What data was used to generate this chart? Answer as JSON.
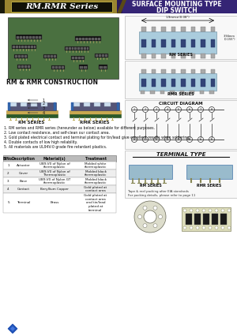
{
  "title_left": "RM.RMR Series",
  "title_right_line1": "SURFACE MOUNTING TYPE",
  "title_right_line2": "DIP SWITCH",
  "section1_title": "RM & RMR CONSTRUCTION",
  "rm_label": "RM SERIES",
  "rmr_label": "RMR SERIES",
  "features": [
    "1. RM series and RMR series (hereunder as below) available for different purposes.",
    "2. Low contact resistance, and self-clean our contact area.",
    "3. Gold plated electrical contact and terminal plating for tin/lead give excellent results when soldering.",
    "4. Double contacts of low high reliability.",
    "5. All materials are UL94V-0 grade fire retardant plastics."
  ],
  "table_header": [
    "BINo.",
    "Description",
    "Material(s)",
    "Treatment"
  ],
  "table_rows": [
    [
      "1",
      "Actuator",
      "UB9-V0 of Nylon of\nthermoplastic",
      "Molded white\nthermoplastic"
    ],
    [
      "2",
      "Cover",
      "UB9-V0 of Nylon of\nThermoplastic",
      "Molded black\nthermoplastic"
    ],
    [
      "3",
      "Base",
      "UB9-V0 of Nylon GT\nthermoplastic",
      "Molded black\nthermoplastic"
    ],
    [
      "4",
      "Contact",
      "Beryllium Copper",
      "Gold plated at\ncontact area"
    ],
    [
      "5",
      "Terminal",
      "Brass",
      "Gold plated at\ncontact area\nand tin/lead\nplated at\nterminal"
    ]
  ],
  "circuit_diagram_title": "CIRCUIT DIAGRAM",
  "terminal_title": "TERMINAL TYPE",
  "rm_series_label": "RM SERIES",
  "rmr_series_label": "RMR SERIES",
  "note_text": "Tape & reel packing after EIA standards\nFor packing details, please refer to page 11",
  "body_bg": "#FFFFFF",
  "photo_bg": "#4A7A3A",
  "header_left_bg": "#6B5C10",
  "header_right_bg": "#2E1E6A",
  "header_inner_bg": "#111111"
}
